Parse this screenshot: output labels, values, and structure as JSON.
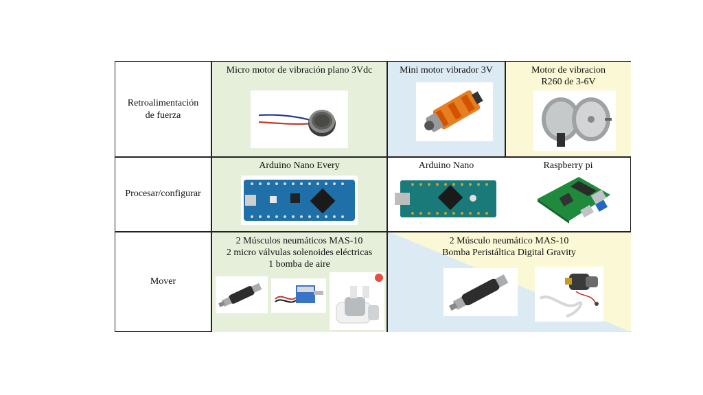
{
  "rows": [
    {
      "label": "Retroalimentación de fuerza",
      "cells": [
        {
          "title": "Micro motor de vibración plano 3Vdc",
          "image": "coin-vibration-motor"
        },
        {
          "title": "Mini motor vibrador 3V",
          "image": "mini-vibrator-motor"
        },
        {
          "title": "Motor de vibracion R260 de 3-6V",
          "image": "r260-motors"
        }
      ]
    },
    {
      "label": "Procesar/configurar",
      "cells": [
        {
          "title": "Arduino Nano Every",
          "image": "arduino-nano-every-board"
        },
        {
          "title": "Arduino Nano",
          "image": "arduino-nano-board"
        },
        {
          "title": "Raspberry pi",
          "image": "raspberry-pi-board"
        }
      ]
    },
    {
      "label": "Mover",
      "cells": [
        {
          "title_lines": [
            "2 Músculos neumáticos MAS-10",
            "2 micro válvulas solenoides eléctricas",
            "1 bomba de aire"
          ],
          "images": [
            "pneumatic-muscle",
            "solenoid-valve",
            "air-pump"
          ]
        },
        {
          "title_lines": [
            "2 Músculo neumático MAS-10",
            "Bomba Peristáltica Digital Gravity"
          ],
          "images": [
            "pneumatic-muscle",
            "peristaltic-pump"
          ]
        }
      ]
    }
  ],
  "colors": {
    "green": "#e6efd9",
    "blue": "#dbeaf3",
    "yellow": "#fbf9d5",
    "border": "#222222"
  }
}
